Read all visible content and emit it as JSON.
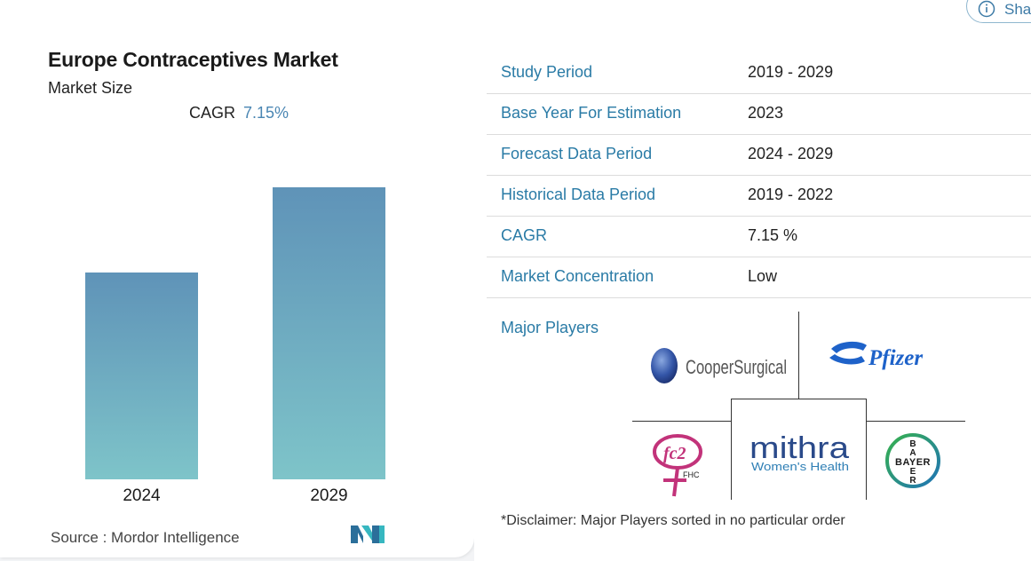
{
  "card": {
    "title": "Europe Contraceptives Market",
    "subtitle": "Market Size",
    "cagr_label": "CAGR",
    "cagr_value": "7.15%",
    "source": "Source :  Mordor Intelligence"
  },
  "chart_data": {
    "type": "bar",
    "categories": [
      "2024",
      "2029"
    ],
    "values": [
      233,
      329
    ],
    "title": "",
    "xlabel": "",
    "ylabel": "",
    "colors": {
      "bar_top": "#5f93b8",
      "bar_bottom": "#7ec4c9"
    }
  },
  "share": {
    "label": "Share",
    "icon": "info-circle-icon"
  },
  "info_table": [
    {
      "key": "Study Period",
      "value": "2019 - 2029"
    },
    {
      "key": "Base Year For Estimation",
      "value": "2023"
    },
    {
      "key": "Forecast Data Period",
      "value": "2024 - 2029"
    },
    {
      "key": "Historical Data Period",
      "value": "2019 - 2022"
    },
    {
      "key": "CAGR",
      "value": "7.15 %"
    },
    {
      "key": "Market Concentration",
      "value": "Low"
    }
  ],
  "players": {
    "title": "Major Players",
    "logos": {
      "cooper": "CooperSurgical",
      "pfizer": "Pfizer",
      "fc2": "fc2",
      "fc2_sub": "FHC",
      "mithra": "mithra",
      "mithra_sub": "Women's Health",
      "bayer": "BAYER"
    },
    "disclaimer": "*Disclaimer: Major Players sorted in no particular order"
  },
  "colors": {
    "accent": "#2a7ba6",
    "cagr": "#4a86b3"
  }
}
